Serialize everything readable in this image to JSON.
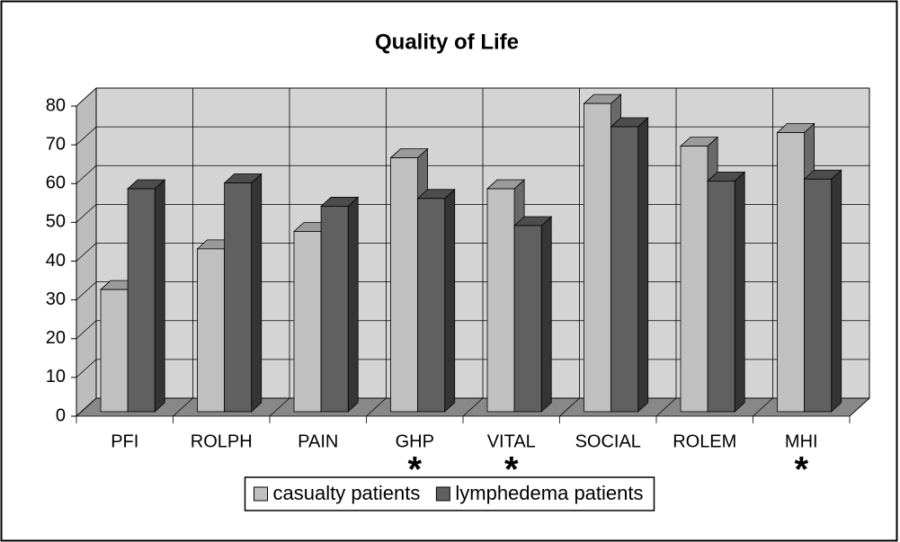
{
  "chart_data": {
    "type": "bar3d",
    "title": "Quality of Life",
    "categories": [
      "PFI",
      "ROLPH",
      "PAIN",
      "GHP",
      "VITAL",
      "SOCIAL",
      "ROLEM",
      "MHI"
    ],
    "series": [
      {
        "name": "casualty patients",
        "color": "#c0c0c0",
        "values": [
          31.5,
          42,
          46.5,
          65.5,
          57.5,
          79.5,
          68.5,
          72
        ]
      },
      {
        "name": "lymphedema patients",
        "color": "#606060",
        "values": [
          57.5,
          59,
          53,
          55,
          48,
          73.5,
          59.5,
          60
        ]
      }
    ],
    "ylim": [
      0,
      80
    ],
    "yticks": [
      0,
      10,
      20,
      30,
      40,
      50,
      60,
      70,
      80
    ],
    "grid": true,
    "legend": "bottom",
    "annotations": [
      {
        "category": "GHP",
        "text": "*"
      },
      {
        "category": "VITAL",
        "text": "*"
      },
      {
        "category": "MHI",
        "text": "*"
      }
    ]
  }
}
